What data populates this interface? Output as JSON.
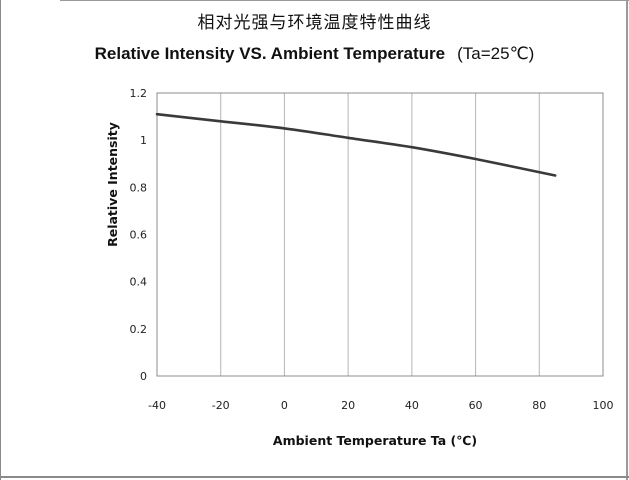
{
  "title_cn": "相对光强与环境温度特性曲线",
  "title_en": "Relative Intensity VS. Ambient Temperature",
  "title_condition": "(Ta=25℃)",
  "chart_data": {
    "type": "line",
    "xlabel": "Ambient  Temperature  Ta (℃)",
    "ylabel": "Relative Intensity",
    "xlim": [
      -40,
      100
    ],
    "ylim": [
      0,
      1.2
    ],
    "x_ticks": [
      "-40",
      "-20",
      "0",
      "20",
      "40",
      "60",
      "80",
      "100"
    ],
    "y_ticks": [
      "0",
      "0.2",
      "0.4",
      "0.6",
      "0.8",
      "1",
      "1.2"
    ],
    "grid": "vertical",
    "series": [
      {
        "x": [
          -40,
          -20,
          0,
          20,
          40,
          60,
          85
        ],
        "y": [
          1.11,
          1.08,
          1.05,
          1.01,
          0.97,
          0.92,
          0.85
        ]
      }
    ],
    "colors": {
      "line": "#3a3a3a",
      "grid": "#b5b5b5",
      "frame": "#8c8c8c"
    }
  }
}
